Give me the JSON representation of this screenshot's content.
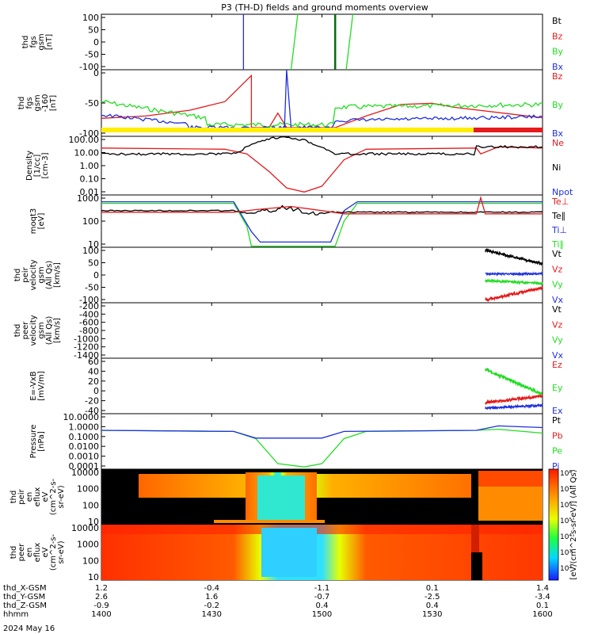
{
  "title": "P3 (TH-D) fields and ground moments overview",
  "date": "2024 May 16",
  "colors": {
    "black": "#000000",
    "red": "#e41a1c",
    "green": "#22dd22",
    "blue": "#1f2fe0",
    "yellow": "#ffee00"
  },
  "chart_data": {
    "type": "line",
    "time_ticks": [
      "1400",
      "1430",
      "1500",
      "1530",
      "1600"
    ],
    "panels": [
      {
        "ylabel": [
          "thd",
          "fgs",
          "gsm",
          "[nT]"
        ],
        "scale": "linear",
        "ylim": [
          -100,
          100
        ],
        "yticks": [
          "100",
          "50",
          "0",
          "-50",
          "-100"
        ],
        "legend": [
          {
            "name": "Bt",
            "color": "black"
          },
          {
            "name": "Bz",
            "color": "red"
          },
          {
            "name": "By",
            "color": "green"
          },
          {
            "name": "Bx",
            "color": "blue"
          }
        ]
      },
      {
        "ylabel": [
          "thd",
          "fgs",
          "gsm",
          "-160",
          "[nT]"
        ],
        "scale": "linear",
        "ylim": [
          -125,
          25
        ],
        "yticks": [
          "0",
          "-50",
          "-100"
        ],
        "legend": [
          {
            "name": "Bz",
            "color": "red"
          },
          {
            "name": "By",
            "color": "green"
          },
          {
            "name": "Bx",
            "color": "blue"
          }
        ]
      },
      {
        "ylabel": [
          "Density",
          "[1/cc]",
          "[cm-3]"
        ],
        "scale": "log",
        "yticks": [
          "100.00",
          "10.00",
          "1.00",
          "0.10",
          "0.01"
        ],
        "legend": [
          {
            "name": "Ne",
            "color": "red"
          },
          {
            "name": "Ni",
            "color": "black"
          },
          {
            "name": "Npot",
            "color": "blue"
          }
        ]
      },
      {
        "ylabel": [
          "moqt3",
          "[eV]"
        ],
        "scale": "log",
        "yticks": [
          "1000",
          "100",
          "10"
        ],
        "legend": [
          {
            "name": "Te⊥",
            "color": "red"
          },
          {
            "name": "Te∥",
            "color": "black"
          },
          {
            "name": "Ti⊥",
            "color": "blue"
          },
          {
            "name": "Ti∥",
            "color": "green"
          }
        ]
      },
      {
        "ylabel": [
          "thd",
          "peir",
          "velocity",
          "gsm",
          "(All Qs)",
          "[km/s]"
        ],
        "scale": "linear",
        "ylim": [
          -100,
          100
        ],
        "yticks": [
          "100",
          "50",
          "0",
          "-50",
          "-100"
        ],
        "legend": [
          {
            "name": "Vt",
            "color": "black"
          },
          {
            "name": "Vz",
            "color": "red"
          },
          {
            "name": "Vy",
            "color": "green"
          },
          {
            "name": "Vx",
            "color": "blue"
          }
        ]
      },
      {
        "ylabel": [
          "thd",
          "peer",
          "velocity",
          "gsm",
          "(All Qs)",
          "[km/s]"
        ],
        "scale": "linear",
        "ylim": [
          -1400,
          -200
        ],
        "yticks": [
          "-200",
          "-400",
          "-600",
          "-800",
          "-1000",
          "-1200",
          "-1400"
        ],
        "legend": [
          {
            "name": "Vt",
            "color": "black"
          },
          {
            "name": "Vz",
            "color": "red"
          },
          {
            "name": "Vy",
            "color": "green"
          },
          {
            "name": "Vx",
            "color": "blue"
          }
        ]
      },
      {
        "ylabel": [
          "E=-VxB",
          "[mV/m]"
        ],
        "scale": "linear",
        "ylim": [
          -40,
          60
        ],
        "yticks": [
          "60",
          "40",
          "20",
          "0",
          "-20",
          "-40"
        ],
        "legend": [
          {
            "name": "Ez",
            "color": "red"
          },
          {
            "name": "Ey",
            "color": "green"
          },
          {
            "name": "Ex",
            "color": "blue"
          }
        ]
      },
      {
        "ylabel": [
          "Pressure",
          "[nPa]"
        ],
        "scale": "log",
        "yticks": [
          "10.0000",
          "1.0000",
          "0.1000",
          "0.0100",
          "0.0010",
          "0.0001"
        ],
        "legend": [
          {
            "name": "Pt",
            "color": "black"
          },
          {
            "name": "Pb",
            "color": "red"
          },
          {
            "name": "Pe",
            "color": "green"
          },
          {
            "name": "Pi",
            "color": "blue"
          }
        ]
      },
      {
        "ylabel": [
          "thd",
          "peir",
          "en",
          "eflux",
          "eV",
          "(cm^2-s-",
          "sr-eV)"
        ],
        "scale": "log",
        "yticks": [
          "10000",
          "1000",
          "100",
          "10"
        ]
      },
      {
        "ylabel": [
          "thd",
          "peer",
          "en",
          "eflux",
          "eV",
          "(cm^2-s-",
          "sr-eV)"
        ],
        "scale": "log",
        "yticks": [
          "10000",
          "1000",
          "100",
          "10"
        ]
      }
    ],
    "colorbar": {
      "label": "[eV/(cm^2-s-sr-eV)] (All Qs)",
      "ticks": [
        "10⁸",
        "10⁷",
        "10⁶",
        "10⁵",
        "10⁴",
        "10³",
        "10²"
      ]
    },
    "ephemeris": {
      "rows": [
        {
          "label": "thd_X-GSM",
          "values": [
            "1.2",
            "-0.4",
            "-1.1",
            "0.1",
            "1.4"
          ]
        },
        {
          "label": "thd_Y-GSM",
          "values": [
            "2.6",
            "1.6",
            "-0.7",
            "-2.5",
            "-3.4"
          ]
        },
        {
          "label": "thd_Z-GSM",
          "values": [
            "-0.9",
            "-0.2",
            "0.4",
            "0.4",
            "0.1"
          ]
        },
        {
          "label": "hhmm",
          "values": [
            "1400",
            "1430",
            "1500",
            "1530",
            "1600"
          ]
        }
      ]
    }
  }
}
